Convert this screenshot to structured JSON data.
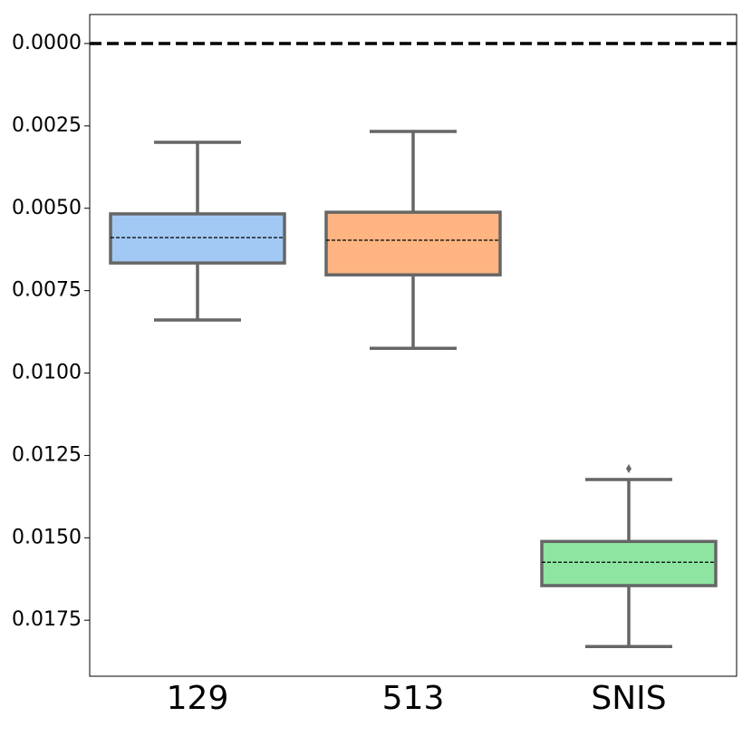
{
  "chart_data": {
    "type": "box",
    "categories": [
      "129",
      "513",
      "SNIS"
    ],
    "colors": [
      "#a1c9f4",
      "#ffb482",
      "#8de5a1"
    ],
    "boxes": [
      {
        "whislo": 0.003,
        "q1": 0.00517,
        "med": 0.00589,
        "q3": 0.00666,
        "whishi": 0.00839,
        "fliers": []
      },
      {
        "whislo": 0.00267,
        "q1": 0.00512,
        "med": 0.00597,
        "q3": 0.00702,
        "whishi": 0.00925,
        "fliers": []
      },
      {
        "whislo": 0.01323,
        "q1": 0.01511,
        "med": 0.01574,
        "q3": 0.01645,
        "whishi": 0.0183,
        "fliers": [
          0.0129
        ]
      }
    ],
    "ylim": [
      0.0192,
      -0.00088
    ],
    "yticks": [
      {
        "value": 0,
        "label": "0.0000"
      },
      {
        "value": 0.0025,
        "label": "0.0025"
      },
      {
        "value": 0.005,
        "label": "0.0050"
      },
      {
        "value": 0.0075,
        "label": "0.0075"
      },
      {
        "value": 0.01,
        "label": "0.0100"
      },
      {
        "value": 0.0125,
        "label": "0.0125"
      },
      {
        "value": 0.015,
        "label": "0.0150"
      },
      {
        "value": 0.0175,
        "label": "0.0175"
      }
    ],
    "reference_line": 0
  }
}
